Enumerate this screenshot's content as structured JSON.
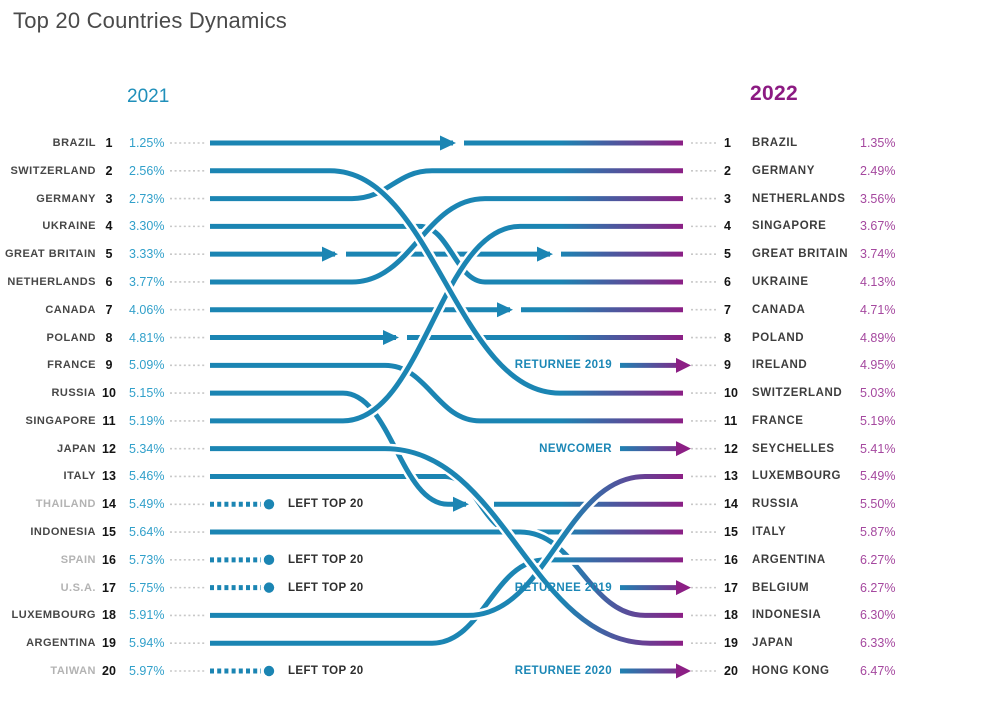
{
  "title": "Top 20 Countries Dynamics",
  "columns": {
    "left_year": "2021",
    "right_year": "2022"
  },
  "labels": {
    "left_top20": "LEFT TOP 20"
  },
  "colors": {
    "teal_line": "#1b85b3",
    "teal_text": "#31a0ca",
    "teal_header": "#1f8fba",
    "purple_line": "#8c1f85",
    "purple_text": "#a5489f",
    "purple_header": "#8c1a82",
    "country_dark": "#474747",
    "country_gray": "#b3b3b3",
    "rank_black": "#141414",
    "leader_gray": "#c8c8c8",
    "title_gray": "#4a4a4a"
  },
  "left_rows": [
    {
      "rank": 1,
      "country": "BRAZIL",
      "share": "1.25%",
      "left_top20": false
    },
    {
      "rank": 2,
      "country": "SWITZERLAND",
      "share": "2.56%",
      "left_top20": false
    },
    {
      "rank": 3,
      "country": "GERMANY",
      "share": "2.73%",
      "left_top20": false
    },
    {
      "rank": 4,
      "country": "UKRAINE",
      "share": "3.30%",
      "left_top20": false
    },
    {
      "rank": 5,
      "country": "GREAT BRITAIN",
      "share": "3.33%",
      "left_top20": false
    },
    {
      "rank": 6,
      "country": "NETHERLANDS",
      "share": "3.77%",
      "left_top20": false
    },
    {
      "rank": 7,
      "country": "CANADA",
      "share": "4.06%",
      "left_top20": false
    },
    {
      "rank": 8,
      "country": "POLAND",
      "share": "4.81%",
      "left_top20": false
    },
    {
      "rank": 9,
      "country": "FRANCE",
      "share": "5.09%",
      "left_top20": false
    },
    {
      "rank": 10,
      "country": "RUSSIA",
      "share": "5.15%",
      "left_top20": false
    },
    {
      "rank": 11,
      "country": "SINGAPORE",
      "share": "5.19%",
      "left_top20": false
    },
    {
      "rank": 12,
      "country": "JAPAN",
      "share": "5.34%",
      "left_top20": false
    },
    {
      "rank": 13,
      "country": "ITALY",
      "share": "5.46%",
      "left_top20": false
    },
    {
      "rank": 14,
      "country": "THAILAND",
      "share": "5.49%",
      "left_top20": true
    },
    {
      "rank": 15,
      "country": "INDONESIA",
      "share": "5.64%",
      "left_top20": false
    },
    {
      "rank": 16,
      "country": "SPAIN",
      "share": "5.73%",
      "left_top20": true
    },
    {
      "rank": 17,
      "country": "U.S.A.",
      "share": "5.75%",
      "left_top20": true
    },
    {
      "rank": 18,
      "country": "LUXEMBOURG",
      "share": "5.91%",
      "left_top20": false
    },
    {
      "rank": 19,
      "country": "ARGENTINA",
      "share": "5.94%",
      "left_top20": false
    },
    {
      "rank": 20,
      "country": "TAIWAN",
      "share": "5.97%",
      "left_top20": true
    }
  ],
  "right_rows": [
    {
      "rank": 1,
      "country": "BRAZIL",
      "share": "1.35%",
      "entry_label": null
    },
    {
      "rank": 2,
      "country": "GERMANY",
      "share": "2.49%",
      "entry_label": null
    },
    {
      "rank": 3,
      "country": "NETHERLANDS",
      "share": "3.56%",
      "entry_label": null
    },
    {
      "rank": 4,
      "country": "SINGAPORE",
      "share": "3.67%",
      "entry_label": null
    },
    {
      "rank": 5,
      "country": "GREAT BRITAIN",
      "share": "3.74%",
      "entry_label": null
    },
    {
      "rank": 6,
      "country": "UKRAINE",
      "share": "4.13%",
      "entry_label": null
    },
    {
      "rank": 7,
      "country": "CANADA",
      "share": "4.71%",
      "entry_label": null
    },
    {
      "rank": 8,
      "country": "POLAND",
      "share": "4.89%",
      "entry_label": null
    },
    {
      "rank": 9,
      "country": "IRELAND",
      "share": "4.95%",
      "entry_label": "RETURNEE 2019"
    },
    {
      "rank": 10,
      "country": "SWITZERLAND",
      "share": "5.03%",
      "entry_label": null
    },
    {
      "rank": 11,
      "country": "FRANCE",
      "share": "5.19%",
      "entry_label": null
    },
    {
      "rank": 12,
      "country": "SEYCHELLES",
      "share": "5.41%",
      "entry_label": "NEWCOMER"
    },
    {
      "rank": 13,
      "country": "LUXEMBOURG",
      "share": "5.49%",
      "entry_label": null
    },
    {
      "rank": 14,
      "country": "RUSSIA",
      "share": "5.50%",
      "entry_label": null
    },
    {
      "rank": 15,
      "country": "ITALY",
      "share": "5.87%",
      "entry_label": null
    },
    {
      "rank": 16,
      "country": "ARGENTINA",
      "share": "6.27%",
      "entry_label": null
    },
    {
      "rank": 17,
      "country": "BELGIUM",
      "share": "6.27%",
      "entry_label": "RETURNEE 2019"
    },
    {
      "rank": 18,
      "country": "INDONESIA",
      "share": "6.30%",
      "entry_label": null
    },
    {
      "rank": 19,
      "country": "JAPAN",
      "share": "6.33%",
      "entry_label": null
    },
    {
      "rank": 20,
      "country": "HONG KONG",
      "share": "6.47%",
      "entry_label": "RETURNEE 2020"
    }
  ],
  "flows": [
    {
      "from": 1,
      "to": 1
    },
    {
      "from": 2,
      "to": 10
    },
    {
      "from": 3,
      "to": 2
    },
    {
      "from": 4,
      "to": 6
    },
    {
      "from": 5,
      "to": 5
    },
    {
      "from": 6,
      "to": 3
    },
    {
      "from": 7,
      "to": 7
    },
    {
      "from": 8,
      "to": 8
    },
    {
      "from": 9,
      "to": 11
    },
    {
      "from": 10,
      "to": 14
    },
    {
      "from": 11,
      "to": 4
    },
    {
      "from": 12,
      "to": 19
    },
    {
      "from": 13,
      "to": 15
    },
    {
      "from": 15,
      "to": 18
    },
    {
      "from": 18,
      "to": 13
    },
    {
      "from": 19,
      "to": 16
    }
  ],
  "chart_data": {
    "type": "line",
    "variant": "bump_ranking_slope_chart",
    "title": "Top 20 Countries Dynamics",
    "columns": [
      "2021",
      "2022"
    ],
    "legend_position": "none",
    "countries": [
      {
        "name": "BRAZIL",
        "rank_2021": 1,
        "share_2021": 1.25,
        "rank_2022": 1,
        "share_2022": 1.35,
        "status": "stayed"
      },
      {
        "name": "SWITZERLAND",
        "rank_2021": 2,
        "share_2021": 2.56,
        "rank_2022": 10,
        "share_2022": 5.03,
        "status": "stayed"
      },
      {
        "name": "GERMANY",
        "rank_2021": 3,
        "share_2021": 2.73,
        "rank_2022": 2,
        "share_2022": 2.49,
        "status": "stayed"
      },
      {
        "name": "UKRAINE",
        "rank_2021": 4,
        "share_2021": 3.3,
        "rank_2022": 6,
        "share_2022": 4.13,
        "status": "stayed"
      },
      {
        "name": "GREAT BRITAIN",
        "rank_2021": 5,
        "share_2021": 3.33,
        "rank_2022": 5,
        "share_2022": 3.74,
        "status": "stayed"
      },
      {
        "name": "NETHERLANDS",
        "rank_2021": 6,
        "share_2021": 3.77,
        "rank_2022": 3,
        "share_2022": 3.56,
        "status": "stayed"
      },
      {
        "name": "CANADA",
        "rank_2021": 7,
        "share_2021": 4.06,
        "rank_2022": 7,
        "share_2022": 4.71,
        "status": "stayed"
      },
      {
        "name": "POLAND",
        "rank_2021": 8,
        "share_2021": 4.81,
        "rank_2022": 8,
        "share_2022": 4.89,
        "status": "stayed"
      },
      {
        "name": "FRANCE",
        "rank_2021": 9,
        "share_2021": 5.09,
        "rank_2022": 11,
        "share_2022": 5.19,
        "status": "stayed"
      },
      {
        "name": "RUSSIA",
        "rank_2021": 10,
        "share_2021": 5.15,
        "rank_2022": 14,
        "share_2022": 5.5,
        "status": "stayed"
      },
      {
        "name": "SINGAPORE",
        "rank_2021": 11,
        "share_2021": 5.19,
        "rank_2022": 4,
        "share_2022": 3.67,
        "status": "stayed"
      },
      {
        "name": "JAPAN",
        "rank_2021": 12,
        "share_2021": 5.34,
        "rank_2022": 19,
        "share_2022": 6.33,
        "status": "stayed"
      },
      {
        "name": "ITALY",
        "rank_2021": 13,
        "share_2021": 5.46,
        "rank_2022": 15,
        "share_2022": 5.87,
        "status": "stayed"
      },
      {
        "name": "THAILAND",
        "rank_2021": 14,
        "share_2021": 5.49,
        "rank_2022": null,
        "share_2022": null,
        "status": "left_top_20"
      },
      {
        "name": "INDONESIA",
        "rank_2021": 15,
        "share_2021": 5.64,
        "rank_2022": 18,
        "share_2022": 6.3,
        "status": "stayed"
      },
      {
        "name": "SPAIN",
        "rank_2021": 16,
        "share_2021": 5.73,
        "rank_2022": null,
        "share_2022": null,
        "status": "left_top_20"
      },
      {
        "name": "U.S.A.",
        "rank_2021": 17,
        "share_2021": 5.75,
        "rank_2022": null,
        "share_2022": null,
        "status": "left_top_20"
      },
      {
        "name": "LUXEMBOURG",
        "rank_2021": 18,
        "share_2021": 5.91,
        "rank_2022": 13,
        "share_2022": 5.49,
        "status": "stayed"
      },
      {
        "name": "ARGENTINA",
        "rank_2021": 19,
        "share_2021": 5.94,
        "rank_2022": 16,
        "share_2022": 6.27,
        "status": "stayed"
      },
      {
        "name": "TAIWAN",
        "rank_2021": 20,
        "share_2021": 5.97,
        "rank_2022": null,
        "share_2022": null,
        "status": "left_top_20"
      },
      {
        "name": "IRELAND",
        "rank_2021": null,
        "share_2021": null,
        "rank_2022": 9,
        "share_2022": 4.95,
        "status": "returnee_2019"
      },
      {
        "name": "SEYCHELLES",
        "rank_2021": null,
        "share_2021": null,
        "rank_2022": 12,
        "share_2022": 5.41,
        "status": "newcomer"
      },
      {
        "name": "BELGIUM",
        "rank_2021": null,
        "share_2021": null,
        "rank_2022": 17,
        "share_2022": 6.27,
        "status": "returnee_2019"
      },
      {
        "name": "HONG KONG",
        "rank_2021": null,
        "share_2021": null,
        "rank_2022": 20,
        "share_2022": 6.47,
        "status": "returnee_2020"
      }
    ]
  }
}
